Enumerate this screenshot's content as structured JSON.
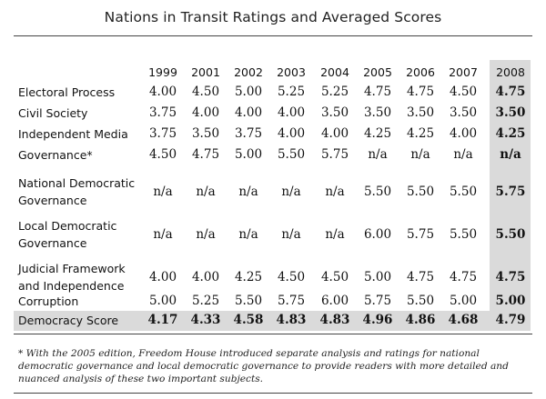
{
  "title": "Nations in Transit Ratings and Averaged Scores",
  "years": [
    "1999",
    "2001",
    "2002",
    "2003",
    "2004",
    "2005",
    "2006",
    "2007",
    "2008"
  ],
  "rows": [
    {
      "label_lines": [
        "Electoral Process"
      ],
      "values": [
        "4.00",
        "4.50",
        "5.00",
        "5.25",
        "5.25",
        "4.75",
        "4.75",
        "4.50",
        "4.75"
      ]
    },
    {
      "label_lines": [
        "Civil Society"
      ],
      "values": [
        "3.75",
        "4.00",
        "4.00",
        "4.00",
        "3.50",
        "3.50",
        "3.50",
        "3.50",
        "3.50"
      ]
    },
    {
      "label_lines": [
        "Independent Media"
      ],
      "values": [
        "3.75",
        "3.50",
        "3.75",
        "4.00",
        "4.00",
        "4.25",
        "4.25",
        "4.00",
        "4.25"
      ]
    },
    {
      "label_lines": [
        "Governance*"
      ],
      "values": [
        "4.50",
        "4.75",
        "5.00",
        "5.50",
        "5.75",
        "n/a",
        "n/a",
        "n/a",
        "n/a"
      ]
    },
    {
      "label_lines": [
        "National Democratic",
        "Governance"
      ],
      "values": [
        "n/a",
        "n/a",
        "n/a",
        "n/a",
        "n/a",
        "5.50",
        "5.50",
        "5.50",
        "5.75"
      ]
    },
    {
      "label_lines": [
        "Local Democratic",
        "Governance"
      ],
      "values": [
        "n/a",
        "n/a",
        "n/a",
        "n/a",
        "n/a",
        "6.00",
        "5.75",
        "5.50",
        "5.50"
      ]
    },
    {
      "label_lines": [
        "Judicial Framework",
        "and Independence"
      ],
      "values": [
        "4.00",
        "4.00",
        "4.25",
        "4.50",
        "4.50",
        "5.00",
        "4.75",
        "4.75",
        "4.75"
      ]
    },
    {
      "label_lines": [
        "Corruption"
      ],
      "values": [
        "5.00",
        "5.25",
        "5.50",
        "5.75",
        "6.00",
        "5.75",
        "5.50",
        "5.00",
        "5.00"
      ]
    }
  ],
  "summary": {
    "label": "Democracy Score",
    "values": [
      "4.17",
      "4.33",
      "4.58",
      "4.83",
      "4.83",
      "4.96",
      "4.86",
      "4.68",
      "4.79"
    ]
  },
  "footnote": "* With the 2005 edition, Freedom House introduced separate analysis and ratings for national democratic governance and local democratic governance to provide readers with more detailed and nuanced analysis of these two important subjects.",
  "colors": {
    "highlight": "#dadada",
    "text": "#111111",
    "rule": "#444444"
  }
}
